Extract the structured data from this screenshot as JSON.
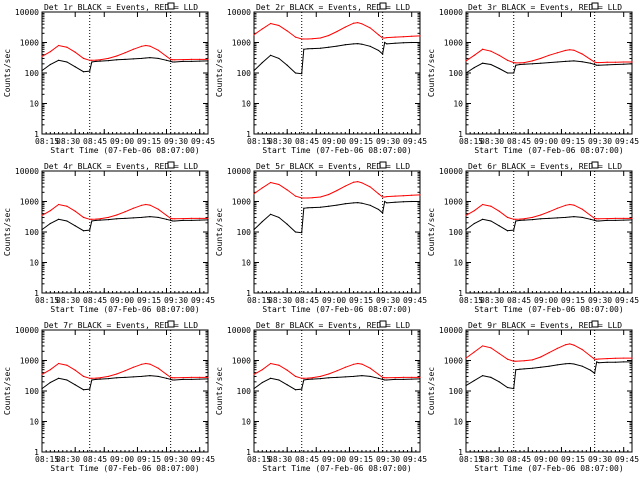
{
  "figure": {
    "x_ticks": [
      "08:15",
      "08:30",
      "08:45",
      "09:00",
      "09:15",
      "09:30",
      "09:45"
    ],
    "colors": {
      "events": "#000000",
      "lld": "#ff0000"
    }
  },
  "chart_data": [
    {
      "type": "line",
      "title": "Det 1r BLACK = Events, RED = LLD",
      "xlabel": "Start Time (07-Feb-06 08:07:00)",
      "ylabel": "Counts/sec",
      "xlim": [
        0,
        40
      ],
      "ylim": [
        1,
        10000
      ],
      "y_scale": "log",
      "x_ticks": [
        8,
        15,
        23,
        30,
        38
      ],
      "y_ticks": [
        1,
        10,
        100,
        1000,
        10000
      ],
      "vertical_lines": [
        11.5,
        31
      ],
      "grid": false,
      "x": [
        0,
        2,
        4,
        6,
        8,
        10,
        11.5,
        12,
        13,
        14,
        16,
        18,
        20,
        22,
        24,
        25,
        26,
        28,
        30,
        31,
        31.5,
        32,
        34,
        36,
        38,
        40
      ],
      "series": [
        {
          "name": "Events",
          "values": [
            120,
            190,
            260,
            230,
            160,
            110,
            115,
            230,
            240,
            245,
            255,
            270,
            280,
            290,
            300,
            310,
            320,
            300,
            260,
            240,
            230,
            230,
            240,
            240,
            245,
            250
          ]
        },
        {
          "name": "LLD",
          "values": [
            350,
            500,
            800,
            700,
            480,
            300,
            260,
            260,
            265,
            270,
            300,
            360,
            460,
            600,
            750,
            800,
            760,
            560,
            350,
            280,
            270,
            270,
            275,
            280,
            280,
            280
          ]
        }
      ]
    },
    {
      "type": "line",
      "title": "Det 2r BLACK = Events, RED = LLD",
      "xlabel": "Start Time (07-Feb-06 08:07:00)",
      "ylabel": "Counts/sec",
      "xlim": [
        0,
        40
      ],
      "ylim": [
        1,
        10000
      ],
      "y_scale": "log",
      "x_ticks": [
        8,
        15,
        23,
        30,
        38
      ],
      "y_ticks": [
        1,
        10,
        100,
        1000,
        10000
      ],
      "vertical_lines": [
        11.5,
        31
      ],
      "grid": false,
      "x": [
        0,
        2,
        4,
        6,
        8,
        10,
        11.5,
        12,
        13,
        14,
        16,
        18,
        20,
        22,
        24,
        25,
        26,
        28,
        30,
        31,
        31.5,
        32,
        34,
        36,
        38,
        40
      ],
      "series": [
        {
          "name": "Events",
          "values": [
            120,
            220,
            380,
            300,
            180,
            100,
            95,
            600,
            620,
            630,
            650,
            700,
            760,
            850,
            900,
            920,
            880,
            750,
            550,
            420,
            1000,
            900,
            950,
            980,
            1000,
            1000
          ]
        },
        {
          "name": "LLD",
          "values": [
            1800,
            2800,
            4200,
            3600,
            2400,
            1500,
            1300,
            1300,
            1300,
            1320,
            1400,
            1700,
            2300,
            3200,
            4300,
            4500,
            4100,
            3000,
            1800,
            1400,
            1400,
            1450,
            1500,
            1550,
            1600,
            1650
          ]
        }
      ]
    },
    {
      "type": "line",
      "title": "Det 3r BLACK = Events, RED = LLD",
      "xlabel": "Start Time (07-Feb-06 08:07:00)",
      "ylabel": "Counts/sec",
      "xlim": [
        0,
        40
      ],
      "ylim": [
        1,
        10000
      ],
      "y_scale": "log",
      "x_ticks": [
        8,
        15,
        23,
        30,
        38
      ],
      "y_ticks": [
        1,
        10,
        100,
        1000,
        10000
      ],
      "vertical_lines": [
        11.5,
        31
      ],
      "grid": false,
      "x": [
        0,
        2,
        4,
        6,
        8,
        10,
        11.5,
        12,
        13,
        14,
        16,
        18,
        20,
        22,
        24,
        25,
        26,
        28,
        30,
        31,
        31.5,
        32,
        34,
        36,
        38,
        40
      ],
      "series": [
        {
          "name": "Events",
          "values": [
            100,
            150,
            210,
            190,
            140,
            100,
            100,
            180,
            190,
            195,
            200,
            210,
            220,
            230,
            240,
            245,
            250,
            235,
            210,
            190,
            180,
            180,
            185,
            190,
            195,
            200
          ]
        },
        {
          "name": "LLD",
          "values": [
            250,
            380,
            600,
            520,
            380,
            260,
            220,
            215,
            215,
            220,
            250,
            300,
            380,
            460,
            550,
            580,
            560,
            420,
            280,
            230,
            220,
            220,
            225,
            225,
            230,
            230
          ]
        }
      ]
    },
    {
      "type": "line",
      "title": "Det 4r BLACK = Events, RED = LLD",
      "xlabel": "Start Time (07-Feb-06 08:07:00)",
      "ylabel": "Counts/sec",
      "xlim": [
        0,
        40
      ],
      "ylim": [
        1,
        10000
      ],
      "y_scale": "log",
      "x_ticks": [
        8,
        15,
        23,
        30,
        38
      ],
      "y_ticks": [
        1,
        10,
        100,
        1000,
        10000
      ],
      "vertical_lines": [
        11.5,
        31
      ],
      "grid": false,
      "x": [
        0,
        2,
        4,
        6,
        8,
        10,
        11.5,
        12,
        13,
        14,
        16,
        18,
        20,
        22,
        24,
        25,
        26,
        28,
        30,
        31,
        31.5,
        32,
        34,
        36,
        38,
        40
      ],
      "series": [
        {
          "name": "Events",
          "values": [
            120,
            190,
            260,
            230,
            160,
            110,
            115,
            230,
            240,
            245,
            255,
            270,
            280,
            290,
            300,
            310,
            320,
            300,
            260,
            240,
            230,
            230,
            240,
            240,
            245,
            250
          ]
        },
        {
          "name": "LLD",
          "values": [
            350,
            500,
            800,
            700,
            480,
            300,
            260,
            260,
            265,
            270,
            300,
            360,
            460,
            600,
            750,
            800,
            760,
            560,
            350,
            280,
            270,
            270,
            275,
            280,
            280,
            280
          ]
        }
      ]
    },
    {
      "type": "line",
      "title": "Det 5r BLACK = Events, RED = LLD",
      "xlabel": "Start Time (07-Feb-06 08:07:00)",
      "ylabel": "Counts/sec",
      "xlim": [
        0,
        40
      ],
      "ylim": [
        1,
        10000
      ],
      "y_scale": "log",
      "x_ticks": [
        8,
        15,
        23,
        30,
        38
      ],
      "y_ticks": [
        1,
        10,
        100,
        1000,
        10000
      ],
      "vertical_lines": [
        11.5,
        31
      ],
      "grid": false,
      "x": [
        0,
        2,
        4,
        6,
        8,
        10,
        11.5,
        12,
        13,
        14,
        16,
        18,
        20,
        22,
        24,
        25,
        26,
        28,
        30,
        31,
        31.5,
        32,
        34,
        36,
        38,
        40
      ],
      "series": [
        {
          "name": "Events",
          "values": [
            120,
            220,
            380,
            300,
            180,
            100,
            95,
            600,
            620,
            630,
            650,
            700,
            760,
            850,
            900,
            920,
            880,
            750,
            550,
            420,
            1000,
            900,
            950,
            980,
            1000,
            1000
          ]
        },
        {
          "name": "LLD",
          "values": [
            1800,
            2800,
            4200,
            3600,
            2400,
            1500,
            1300,
            1300,
            1300,
            1320,
            1400,
            1700,
            2300,
            3200,
            4300,
            4500,
            4100,
            3000,
            1800,
            1400,
            1400,
            1450,
            1500,
            1550,
            1600,
            1650
          ]
        }
      ]
    },
    {
      "type": "line",
      "title": "Det 6r BLACK = Events, RED = LLD",
      "xlabel": "Start Time (07-Feb-06 08:07:00)",
      "ylabel": "Counts/sec",
      "xlim": [
        0,
        40
      ],
      "ylim": [
        1,
        10000
      ],
      "y_scale": "log",
      "x_ticks": [
        8,
        15,
        23,
        30,
        38
      ],
      "y_ticks": [
        1,
        10,
        100,
        1000,
        10000
      ],
      "vertical_lines": [
        11.5,
        31
      ],
      "grid": false,
      "x": [
        0,
        2,
        4,
        6,
        8,
        10,
        11.5,
        12,
        13,
        14,
        16,
        18,
        20,
        22,
        24,
        25,
        26,
        28,
        30,
        31,
        31.5,
        32,
        34,
        36,
        38,
        40
      ],
      "series": [
        {
          "name": "Events",
          "values": [
            120,
            190,
            260,
            230,
            160,
            110,
            115,
            230,
            240,
            245,
            255,
            270,
            280,
            290,
            300,
            310,
            320,
            300,
            260,
            240,
            230,
            230,
            240,
            240,
            245,
            250
          ]
        },
        {
          "name": "LLD",
          "values": [
            350,
            500,
            800,
            700,
            480,
            300,
            260,
            260,
            265,
            270,
            300,
            360,
            460,
            600,
            750,
            800,
            760,
            560,
            350,
            280,
            270,
            270,
            275,
            280,
            280,
            280
          ]
        }
      ]
    },
    {
      "type": "line",
      "title": "Det 7r BLACK = Events, RED = LLD",
      "xlabel": "Start Time (07-Feb-06 08:07:00)",
      "ylabel": "Counts/sec",
      "xlim": [
        0,
        40
      ],
      "ylim": [
        1,
        10000
      ],
      "y_scale": "log",
      "x_ticks": [
        8,
        15,
        23,
        30,
        38
      ],
      "y_ticks": [
        1,
        10,
        100,
        1000,
        10000
      ],
      "vertical_lines": [
        11.5,
        31
      ],
      "grid": false,
      "x": [
        0,
        2,
        4,
        6,
        8,
        10,
        11.5,
        12,
        13,
        14,
        16,
        18,
        20,
        22,
        24,
        25,
        26,
        28,
        30,
        31,
        31.5,
        32,
        34,
        36,
        38,
        40
      ],
      "series": [
        {
          "name": "Events",
          "values": [
            120,
            190,
            260,
            230,
            160,
            110,
            115,
            230,
            240,
            245,
            255,
            270,
            280,
            290,
            300,
            310,
            320,
            300,
            260,
            240,
            230,
            230,
            240,
            240,
            245,
            250
          ]
        },
        {
          "name": "LLD",
          "values": [
            350,
            500,
            800,
            700,
            480,
            300,
            260,
            260,
            265,
            270,
            300,
            360,
            460,
            600,
            750,
            800,
            760,
            560,
            350,
            280,
            270,
            270,
            275,
            280,
            280,
            280
          ]
        }
      ]
    },
    {
      "type": "line",
      "title": "Det 8r BLACK = Events, RED = LLD",
      "xlabel": "Start Time (07-Feb-06 08:07:00)",
      "ylabel": "Counts/sec",
      "xlim": [
        0,
        40
      ],
      "ylim": [
        1,
        10000
      ],
      "y_scale": "log",
      "x_ticks": [
        8,
        15,
        23,
        30,
        38
      ],
      "y_ticks": [
        1,
        10,
        100,
        1000,
        10000
      ],
      "vertical_lines": [
        11.5,
        31
      ],
      "grid": false,
      "x": [
        0,
        2,
        4,
        6,
        8,
        10,
        11.5,
        12,
        13,
        14,
        16,
        18,
        20,
        22,
        24,
        25,
        26,
        28,
        30,
        31,
        31.5,
        32,
        34,
        36,
        38,
        40
      ],
      "series": [
        {
          "name": "Events",
          "values": [
            120,
            190,
            260,
            230,
            160,
            110,
            115,
            230,
            240,
            245,
            255,
            270,
            280,
            290,
            300,
            310,
            320,
            300,
            260,
            240,
            230,
            230,
            240,
            240,
            245,
            250
          ]
        },
        {
          "name": "LLD",
          "values": [
            350,
            500,
            800,
            700,
            480,
            300,
            260,
            260,
            265,
            270,
            300,
            360,
            460,
            600,
            750,
            800,
            760,
            560,
            350,
            280,
            270,
            270,
            275,
            280,
            280,
            280
          ]
        }
      ]
    },
    {
      "type": "line",
      "title": "Det 9r BLACK = Events, RED = LLD",
      "xlabel": "Start Time (07-Feb-06 08:07:00)",
      "ylabel": "Counts/sec",
      "xlim": [
        0,
        40
      ],
      "ylim": [
        1,
        10000
      ],
      "y_scale": "log",
      "x_ticks": [
        8,
        15,
        23,
        30,
        38
      ],
      "y_ticks": [
        1,
        10,
        100,
        1000,
        10000
      ],
      "vertical_lines": [
        11.5,
        31
      ],
      "grid": false,
      "x": [
        0,
        2,
        4,
        6,
        8,
        10,
        11.5,
        12,
        13,
        14,
        16,
        18,
        20,
        22,
        24,
        25,
        26,
        28,
        30,
        31,
        31.5,
        32,
        34,
        36,
        38,
        40
      ],
      "series": [
        {
          "name": "Events",
          "values": [
            150,
            220,
            320,
            280,
            200,
            130,
            120,
            500,
            520,
            530,
            560,
            600,
            650,
            720,
            780,
            800,
            770,
            650,
            480,
            380,
            900,
            850,
            870,
            880,
            900,
            900
          ]
        },
        {
          "name": "LLD",
          "values": [
            1200,
            1900,
            3000,
            2600,
            1700,
            1100,
            950,
            950,
            960,
            980,
            1050,
            1300,
            1800,
            2500,
            3300,
            3500,
            3200,
            2300,
            1400,
            1100,
            1100,
            1120,
            1150,
            1180,
            1200,
            1200
          ]
        }
      ]
    }
  ]
}
